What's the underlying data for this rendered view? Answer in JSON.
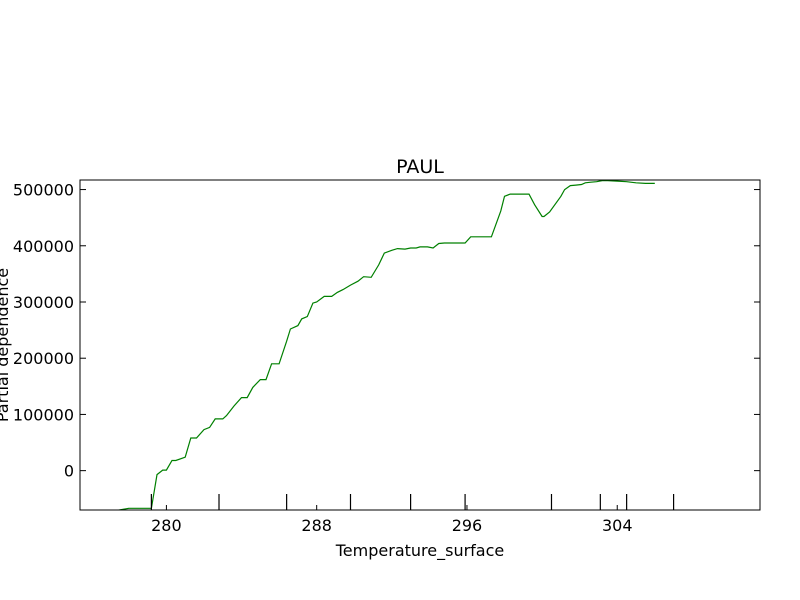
{
  "chart_data": {
    "type": "line",
    "title": "PAUL",
    "xlabel": "Temperature_surface",
    "ylabel": "Partial dependence",
    "xlim": [
      275.4,
      311.6
    ],
    "ylim": [
      -70000,
      517000
    ],
    "x_ticks": [
      280,
      288,
      296,
      304
    ],
    "x_tick_labels": [
      "280",
      "288",
      "296",
      "304"
    ],
    "y_ticks": [
      0,
      100000,
      200000,
      300000,
      400000,
      500000
    ],
    "y_tick_labels": [
      "0",
      "100000",
      "200000",
      "300000",
      "400000",
      "500000"
    ],
    "minor_ticks_x": [
      279.2,
      282.8,
      286.4,
      289.8,
      293.0,
      295.9,
      300.5,
      303.1,
      304.5,
      307.0
    ],
    "grid": false,
    "series": [
      {
        "color": "#008000",
        "x": [
          276.3,
          277.3,
          278.0,
          279.2,
          279.5,
          279.8,
          280.0,
          280.3,
          280.5,
          281.0,
          281.3,
          281.6,
          282.0,
          282.3,
          282.6,
          283.0,
          283.2,
          283.6,
          284.0,
          284.3,
          284.6,
          285.0,
          285.3,
          285.6,
          286.0,
          286.4,
          286.6,
          287.0,
          287.2,
          287.5,
          287.8,
          288.0,
          288.4,
          288.8,
          289.1,
          289.4,
          289.8,
          290.2,
          290.5,
          290.9,
          291.3,
          291.6,
          292.0,
          292.3,
          292.7,
          293.0,
          293.3,
          293.5,
          293.9,
          294.2,
          294.5,
          294.8,
          295.2,
          295.5,
          295.9,
          296.2,
          296.5,
          296.8,
          297.3,
          297.8,
          298.0,
          298.3,
          298.6,
          299.3,
          299.6,
          300.0,
          300.1,
          300.4,
          301.0,
          301.2,
          301.5,
          301.8,
          302.1,
          302.3,
          302.6,
          302.9,
          303.2,
          303.5,
          304.0,
          304.5,
          305.0,
          305.5,
          306.0
        ],
        "y": [
          -71000,
          -71000,
          -67000,
          -67000,
          -7000,
          1000,
          1000,
          18000,
          18000,
          24000,
          58000,
          58000,
          73000,
          77000,
          92000,
          92000,
          98000,
          115000,
          130000,
          130000,
          148000,
          162000,
          162000,
          190000,
          190000,
          230000,
          252000,
          258000,
          270000,
          274000,
          298000,
          300000,
          310000,
          310000,
          317000,
          322000,
          330000,
          337000,
          345000,
          344000,
          366000,
          387000,
          392000,
          395000,
          394000,
          396000,
          396000,
          398000,
          398000,
          396000,
          404000,
          405000,
          405000,
          405000,
          405000,
          416000,
          416000,
          416000,
          416000,
          462000,
          488000,
          492000,
          492000,
          492000,
          473000,
          452000,
          452000,
          460000,
          488000,
          500000,
          507000,
          508000,
          509000,
          512000,
          513000,
          514000,
          516000,
          516000,
          515000,
          514000,
          512000,
          511000,
          511000
        ]
      }
    ]
  }
}
